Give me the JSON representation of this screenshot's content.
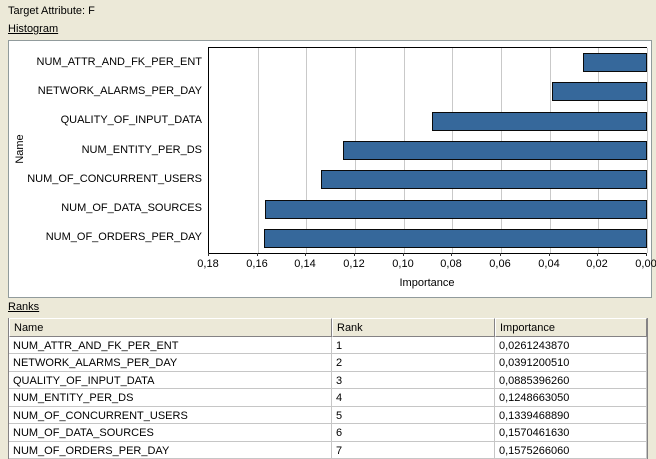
{
  "header": {
    "target_attribute_label": "Target Attribute: F"
  },
  "histogram_section": {
    "title": "Histogram"
  },
  "ranks_section": {
    "title": "Ranks"
  },
  "chart_data": {
    "type": "bar",
    "orientation": "horizontal",
    "title": "",
    "xlabel": "Importance",
    "ylabel": "Name",
    "x_axis_reversed": true,
    "xlim": [
      0,
      0.18
    ],
    "grid": true,
    "x_tick_labels": [
      "0,18",
      "0,16",
      "0,14",
      "0,12",
      "0,10",
      "0,08",
      "0,06",
      "0,04",
      "0,02",
      "0,00"
    ],
    "categories": [
      "NUM_ATTR_AND_FK_PER_ENT",
      "NETWORK_ALARMS_PER_DAY",
      "QUALITY_OF_INPUT_DATA",
      "NUM_ENTITY_PER_DS",
      "NUM_OF_CONCURRENT_USERS",
      "NUM_OF_DATA_SOURCES",
      "NUM_OF_ORDERS_PER_DAY"
    ],
    "values": [
      0.026124387,
      0.039120051,
      0.088539626,
      0.124866305,
      0.133946889,
      0.157046163,
      0.157526606
    ]
  },
  "table": {
    "columns": [
      "Name",
      "Rank",
      "Importance"
    ],
    "rows": [
      [
        "NUM_ATTR_AND_FK_PER_ENT",
        "1",
        "0,0261243870"
      ],
      [
        "NETWORK_ALARMS_PER_DAY",
        "2",
        "0,0391200510"
      ],
      [
        "QUALITY_OF_INPUT_DATA",
        "3",
        "0,0885396260"
      ],
      [
        "NUM_ENTITY_PER_DS",
        "4",
        "0,1248663050"
      ],
      [
        "NUM_OF_CONCURRENT_USERS",
        "5",
        "0,1339468890"
      ],
      [
        "NUM_OF_DATA_SOURCES",
        "6",
        "0,1570461630"
      ],
      [
        "NUM_OF_ORDERS_PER_DAY",
        "7",
        "0,1575266060"
      ]
    ]
  },
  "colors": {
    "background": "#ECE9D8",
    "bar_fill": "#36689B",
    "bar_border": "#0A0A0A",
    "grid_line": "#C9C9C9",
    "panel_border": "#919B9C",
    "row_separator": "#C6C6C6"
  }
}
